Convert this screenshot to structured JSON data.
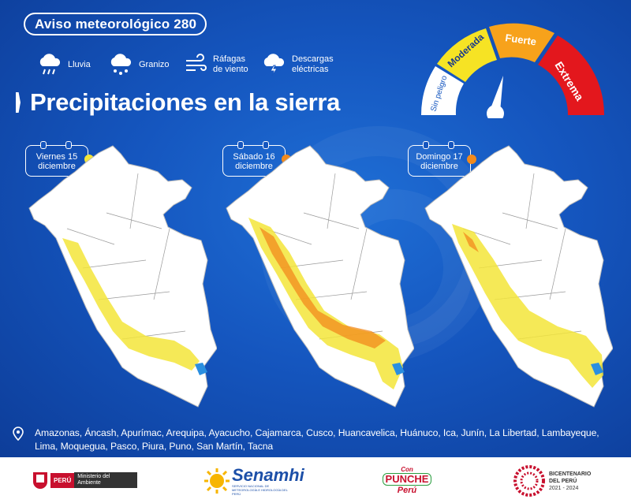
{
  "header": {
    "badge": "Aviso meteorológico 280",
    "legend": [
      {
        "icon": "rain-cloud-icon",
        "label": "Lluvia"
      },
      {
        "icon": "hail-cloud-icon",
        "label": "Granizo"
      },
      {
        "icon": "wind-gust-icon",
        "label": "Ráfagas de viento"
      },
      {
        "icon": "lightning-cloud-icon",
        "label": "Descargas eléctricas"
      }
    ],
    "title": "Precipitaciones en la sierra"
  },
  "gauge": {
    "levels": [
      {
        "label": "Sin peligro",
        "color": "#ffffff"
      },
      {
        "label": "Moderada",
        "color": "#f6e324"
      },
      {
        "label": "Fuerte",
        "color": "#f7a21b"
      },
      {
        "label": "Extrema",
        "color": "#e3171d"
      }
    ]
  },
  "days": [
    {
      "day": "Viernes 15",
      "month": "diciembre",
      "dot_color": "#f3e53a"
    },
    {
      "day": "Sábado 16",
      "month": "diciembre",
      "dot_color": "#f28a1c"
    },
    {
      "day": "Domingo 17",
      "month": "diciembre",
      "dot_color": "#f28a1c"
    }
  ],
  "regions": "Amazonas, Áncash, Apurímac, Arequipa, Ayacucho, Cajamarca, Cusco, Huancavelica, Huánuco, Ica, Junín, La Libertad, Lambayeque, Lima, Moquegua, Pasco, Piura, Puno, San Martín, Tacna",
  "footer": {
    "peru": "PERÚ",
    "ministry": "Ministerio del Ambiente",
    "senamhi": "Senamhi",
    "senamhi_sub": "SERVICIO NACIONAL DE METEOROLOGÍA E HIDROLOGÍA DEL PERÚ",
    "campaign_1": "Con",
    "campaign_2": "PUNCHE",
    "campaign_3": "Perú",
    "bicentenario": "BICENTENARIO",
    "del_peru": "DEL PERÚ",
    "years": "2021 - 2024"
  },
  "colors": {
    "moderate": "#f3e53a",
    "strong": "#f28a1c",
    "lake": "#2a8fe0"
  }
}
